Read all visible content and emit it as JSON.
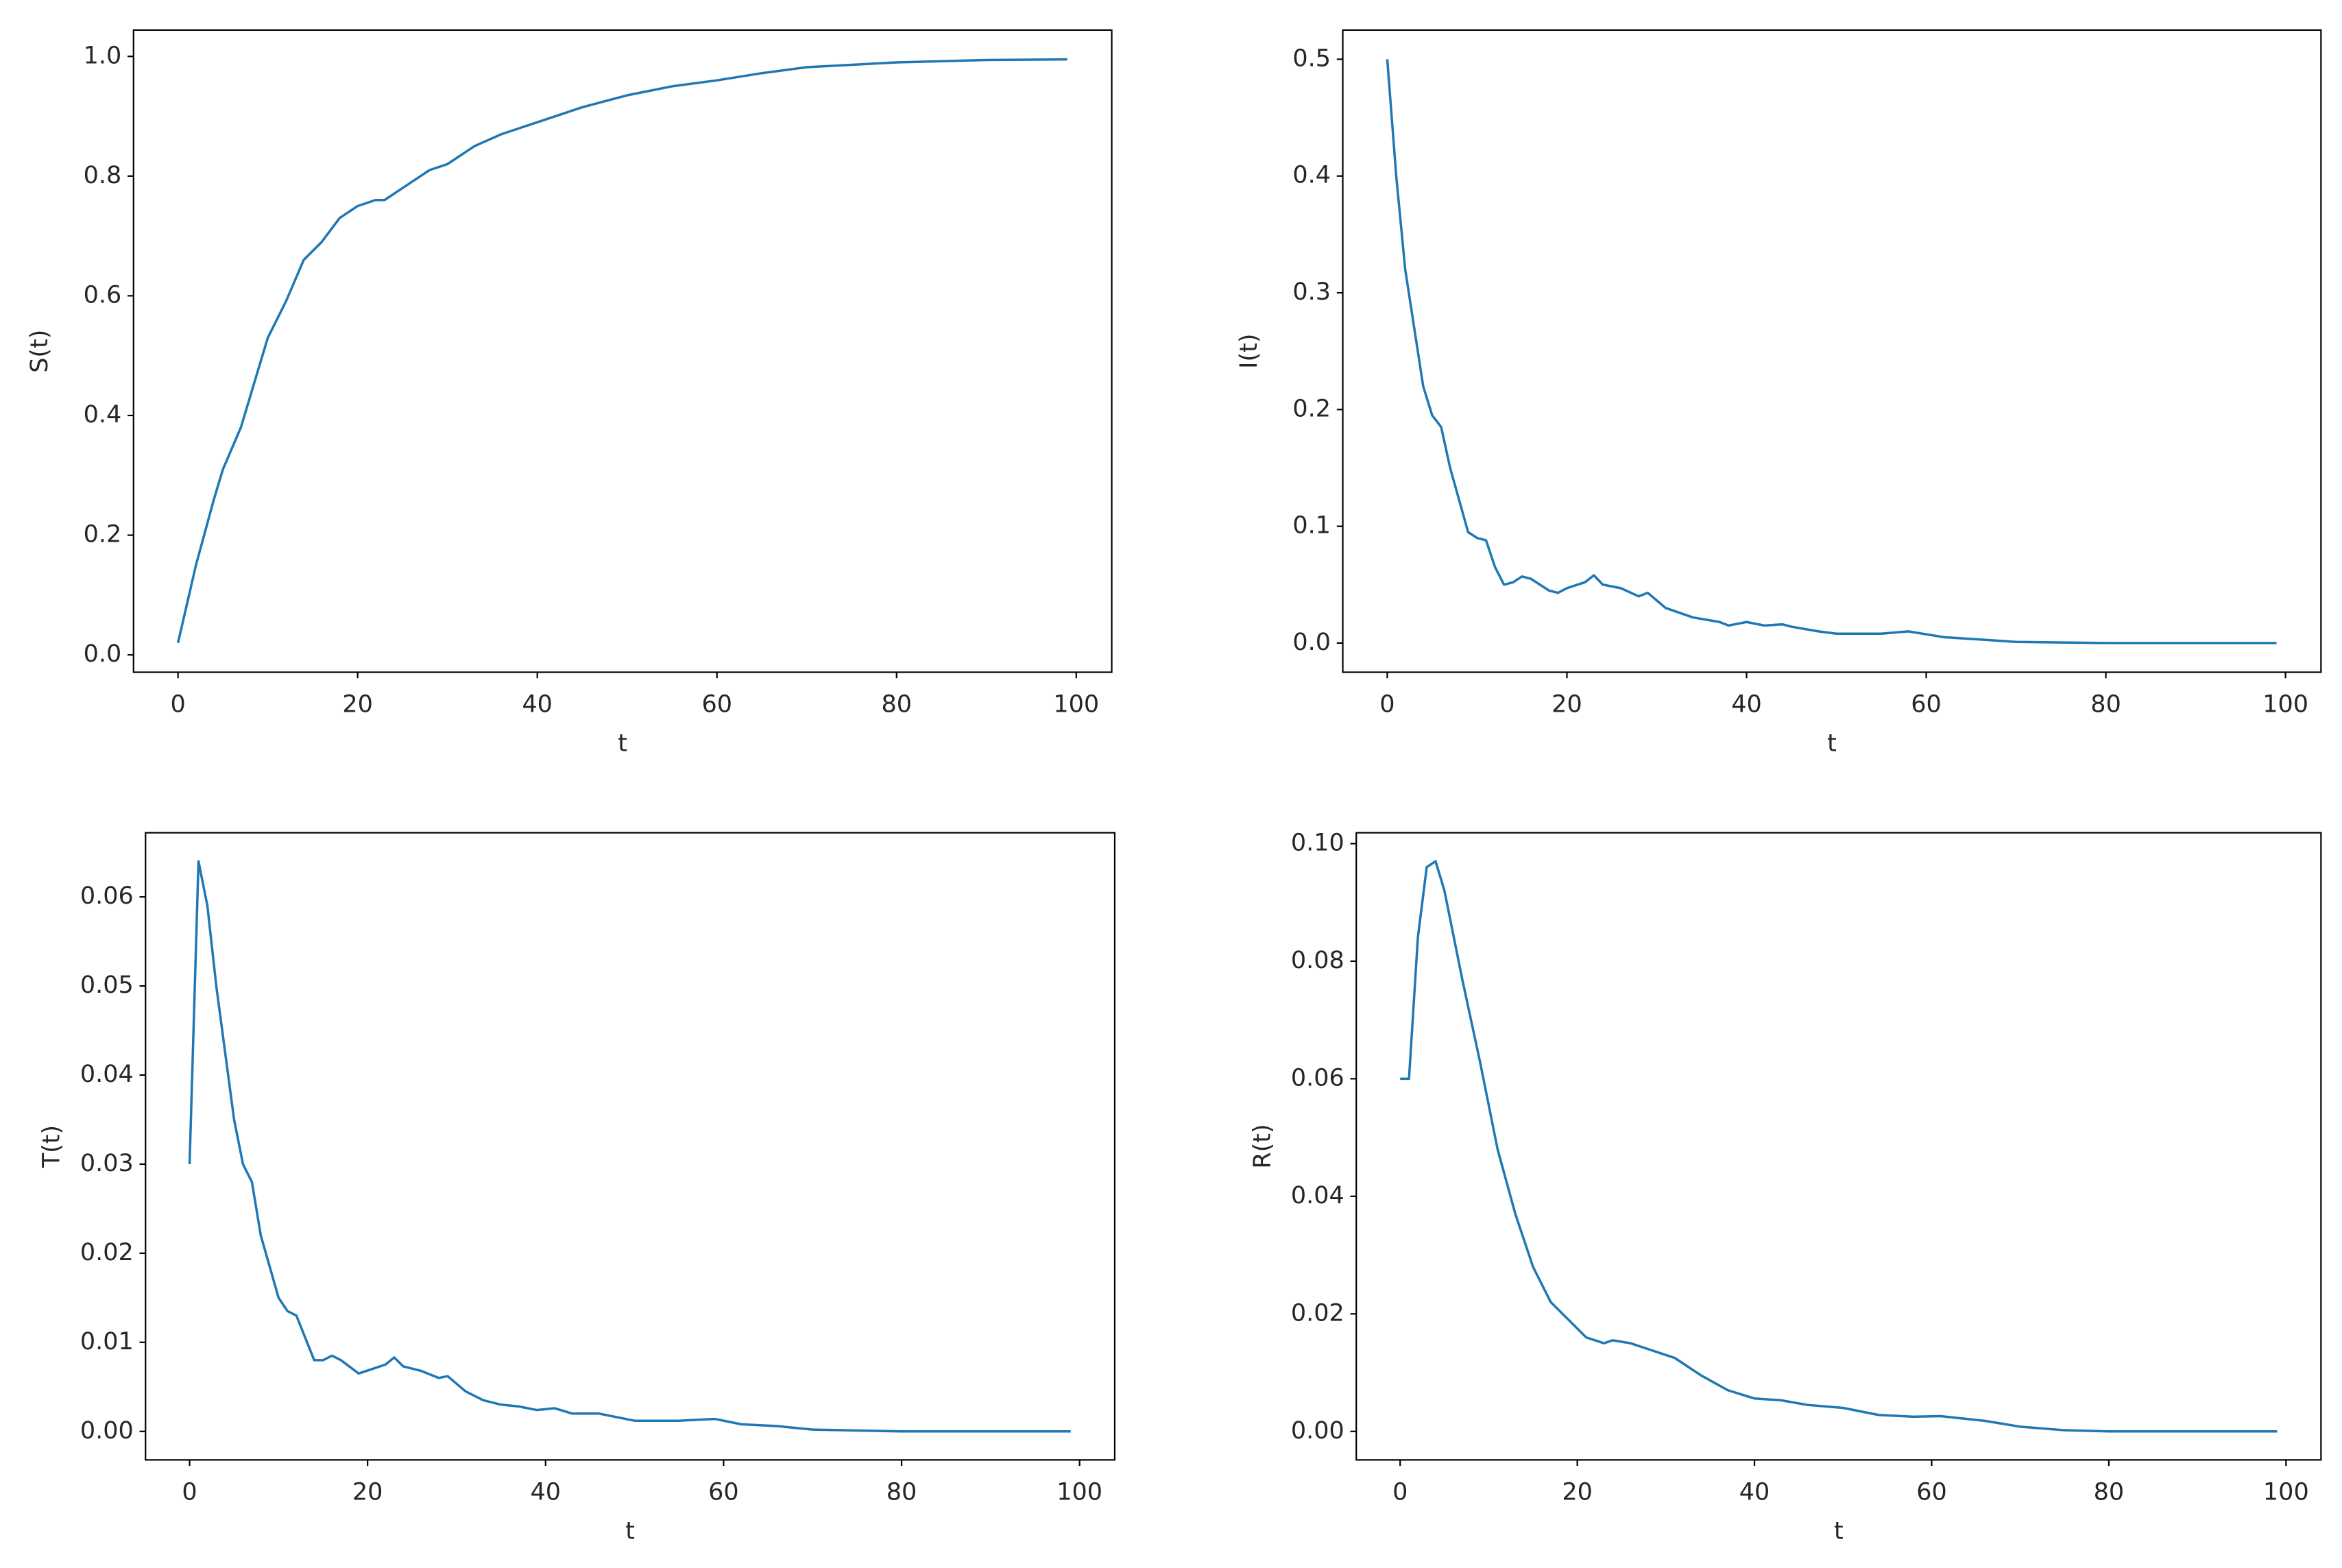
{
  "chart_data": [
    {
      "type": "line",
      "xlabel": "t",
      "ylabel": "S(t)",
      "color": "#1f77b4",
      "x": [
        0,
        2,
        4,
        5,
        7,
        9,
        10,
        12,
        14,
        16,
        18,
        20,
        22,
        23,
        25,
        28,
        30,
        33,
        36,
        40,
        45,
        50,
        55,
        60,
        65,
        70,
        80,
        90,
        99
      ],
      "values": [
        0.02,
        0.15,
        0.26,
        0.31,
        0.38,
        0.48,
        0.53,
        0.59,
        0.66,
        0.69,
        0.73,
        0.75,
        0.76,
        0.76,
        0.78,
        0.81,
        0.82,
        0.85,
        0.87,
        0.89,
        0.915,
        0.935,
        0.95,
        0.96,
        0.972,
        0.982,
        0.99,
        0.994,
        0.995
      ],
      "xlim": [
        -4.95,
        103.95
      ],
      "xticks": [
        0,
        20,
        40,
        60,
        80,
        100
      ],
      "ylim": [
        -0.029,
        1.044
      ],
      "yticks": [
        {
          "value": 0,
          "label": "0.0"
        },
        0.2,
        0.4,
        0.6,
        0.8,
        {
          "value": 1,
          "label": "1.0"
        }
      ]
    },
    {
      "type": "line",
      "xlabel": "t",
      "ylabel": "I(t)",
      "color": "#1f77b4",
      "x": [
        0,
        1,
        2,
        3,
        4,
        5,
        6,
        7,
        9,
        10,
        11,
        12,
        13,
        14,
        15,
        16,
        18,
        19,
        20,
        22,
        23,
        24,
        26,
        28,
        29,
        31,
        34,
        37,
        38,
        40,
        42,
        44,
        45,
        48,
        50,
        55,
        58,
        62,
        66,
        70,
        80,
        99
      ],
      "values": [
        0.5,
        0.4,
        0.32,
        0.27,
        0.22,
        0.195,
        0.185,
        0.15,
        0.095,
        0.09,
        0.088,
        0.065,
        0.05,
        0.052,
        0.057,
        0.055,
        0.045,
        0.043,
        0.047,
        0.052,
        0.058,
        0.05,
        0.047,
        0.04,
        0.043,
        0.03,
        0.022,
        0.018,
        0.015,
        0.018,
        0.015,
        0.016,
        0.014,
        0.01,
        0.008,
        0.008,
        0.01,
        0.005,
        0.003,
        0.001,
        0,
        0
      ],
      "xlim": [
        -4.95,
        103.95
      ],
      "xticks": [
        0,
        20,
        40,
        60,
        80,
        100
      ],
      "ylim": [
        -0.025,
        0.525
      ],
      "yticks": [
        {
          "value": 0,
          "label": "0.0"
        },
        0.1,
        0.2,
        0.3,
        0.4,
        0.5
      ]
    },
    {
      "type": "line",
      "xlabel": "t",
      "ylabel": "T(t)",
      "color": "#1f77b4",
      "x": [
        0,
        1,
        2,
        3,
        5,
        6,
        7,
        8,
        10,
        11,
        12,
        14,
        15,
        16,
        17,
        19,
        22,
        23,
        24,
        26,
        28,
        29,
        31,
        33,
        35,
        37,
        39,
        41,
        43,
        46,
        50,
        55,
        59,
        62,
        66,
        70,
        80,
        99
      ],
      "values": [
        0.03,
        0.064,
        0.059,
        0.05,
        0.035,
        0.03,
        0.028,
        0.022,
        0.015,
        0.0135,
        0.013,
        0.008,
        0.008,
        0.0085,
        0.008,
        0.0065,
        0.0075,
        0.0083,
        0.0073,
        0.0068,
        0.006,
        0.0062,
        0.0045,
        0.0035,
        0.003,
        0.0028,
        0.0024,
        0.0026,
        0.002,
        0.002,
        0.0012,
        0.0012,
        0.0014,
        0.0008,
        0.0006,
        0.0002,
        0,
        0
      ],
      "xlim": [
        -4.95,
        103.95
      ],
      "xticks": [
        0,
        20,
        40,
        60,
        80,
        100
      ],
      "ylim": [
        -0.0032,
        0.0672
      ],
      "yticks": [
        {
          "value": 0,
          "label": "0.00"
        },
        {
          "value": 0.01,
          "label": "0.01"
        },
        {
          "value": 0.02,
          "label": "0.02"
        },
        {
          "value": 0.03,
          "label": "0.03"
        },
        {
          "value": 0.04,
          "label": "0.04"
        },
        {
          "value": 0.05,
          "label": "0.05"
        },
        {
          "value": 0.06,
          "label": "0.06"
        }
      ]
    },
    {
      "type": "line",
      "xlabel": "t",
      "ylabel": "R(t)",
      "color": "#1f77b4",
      "x": [
        0,
        1,
        2,
        3,
        4,
        5,
        7,
        9,
        11,
        13,
        15,
        17,
        19,
        21,
        23,
        24,
        26,
        28,
        31,
        34,
        37,
        40,
        43,
        46,
        50,
        54,
        58,
        61,
        66,
        70,
        75,
        80,
        99
      ],
      "values": [
        0.06,
        0.06,
        0.084,
        0.096,
        0.097,
        0.092,
        0.077,
        0.063,
        0.048,
        0.037,
        0.028,
        0.022,
        0.019,
        0.016,
        0.015,
        0.0155,
        0.015,
        0.014,
        0.0125,
        0.0095,
        0.007,
        0.0056,
        0.0053,
        0.0045,
        0.004,
        0.0028,
        0.0025,
        0.0026,
        0.0018,
        0.0008,
        0.0002,
        0,
        0
      ],
      "xlim": [
        -4.95,
        103.95
      ],
      "xticks": [
        0,
        20,
        40,
        60,
        80,
        100
      ],
      "ylim": [
        -0.00485,
        0.10185
      ],
      "yticks": [
        {
          "value": 0,
          "label": "0.00"
        },
        {
          "value": 0.02,
          "label": "0.02"
        },
        {
          "value": 0.04,
          "label": "0.04"
        },
        {
          "value": 0.06,
          "label": "0.06"
        },
        {
          "value": 0.08,
          "label": "0.08"
        },
        {
          "value": 0.1,
          "label": "0.10"
        }
      ]
    }
  ]
}
